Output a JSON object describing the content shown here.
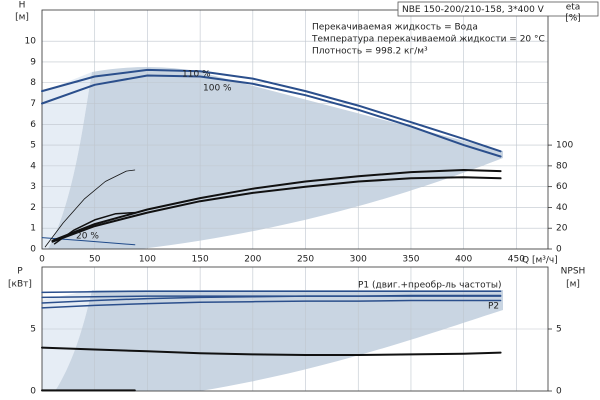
{
  "chart_data": [
    {
      "type": "line",
      "title": "NBE 150-200/210-158, 3*400 V",
      "notes": [
        "Перекачиваемая жидкость = Вода",
        "Температура перекачиваемой жидкости = 20 °C",
        "Плотность = 998.2 кг/м³"
      ],
      "ylabel": "H",
      "yunit": "[м]",
      "y2label": "eta",
      "y2unit": "[%]",
      "xlabel": "Q [м³/ч]",
      "xlim": [
        0,
        480
      ],
      "xticks": [
        0,
        50,
        100,
        150,
        200,
        250,
        300,
        350,
        400,
        450
      ],
      "ylim": [
        0,
        11.5
      ],
      "yticks": [
        0,
        1,
        2,
        3,
        4,
        5,
        6,
        7,
        8,
        9,
        10
      ],
      "y2lim": [
        0,
        230
      ],
      "y2ticks": [
        0,
        20,
        40,
        60,
        80,
        100
      ],
      "grid": true,
      "annotations": [
        "110 %",
        "100 %",
        "20 %"
      ],
      "series": [
        {
          "color": "#2b4f8c",
          "width": 2,
          "x": [
            0,
            50,
            100,
            150,
            200,
            250,
            300,
            350,
            400,
            435
          ],
          "values": [
            7.6,
            8.3,
            8.62,
            8.55,
            8.2,
            7.6,
            6.9,
            6.1,
            5.3,
            4.7
          ]
        },
        {
          "color": "#2b4f8c",
          "width": 2,
          "x": [
            0,
            50,
            100,
            150,
            200,
            250,
            300,
            350,
            400,
            435
          ],
          "values": [
            7.0,
            7.9,
            8.35,
            8.3,
            7.95,
            7.4,
            6.7,
            5.9,
            5.0,
            4.45
          ]
        },
        {
          "color": "#1f4a8a",
          "width": 1,
          "x": [
            0,
            40,
            88
          ],
          "values": [
            0.55,
            0.4,
            0.2
          ]
        },
        {
          "color": "#111111",
          "width": 2,
          "axis": "y2",
          "x": [
            10,
            50,
            100,
            150,
            200,
            250,
            300,
            350,
            400,
            435
          ],
          "values": [
            8,
            24,
            38,
            49,
            58,
            65,
            70,
            74,
            76,
            75
          ]
        },
        {
          "color": "#111111",
          "width": 2,
          "axis": "y2",
          "x": [
            10,
            50,
            100,
            150,
            200,
            250,
            300,
            350,
            400,
            435
          ],
          "values": [
            7,
            22,
            35,
            46,
            54,
            60,
            65,
            68,
            69,
            68
          ]
        },
        {
          "color": "#111111",
          "width": 0.8,
          "axis": "y2",
          "x": [
            3,
            20,
            40,
            60,
            80,
            88
          ],
          "values": [
            2,
            25,
            48,
            65,
            75,
            76
          ]
        },
        {
          "color": "#111111",
          "width": 1.5,
          "axis": "y2",
          "x": [
            12,
            30,
            50,
            70,
            88
          ],
          "values": [
            5,
            18,
            28,
            34,
            35
          ]
        }
      ]
    },
    {
      "type": "line",
      "ylabel": "P",
      "yunit": "[кВт]",
      "y2label": "NPSH",
      "y2unit": "[м]",
      "xlim": [
        0,
        480
      ],
      "xticks": [
        0,
        50,
        100,
        150,
        200,
        250,
        300,
        350,
        400,
        450
      ],
      "ylim": [
        0,
        10
      ],
      "yticks": [
        0,
        5
      ],
      "y2lim": [
        0,
        10
      ],
      "y2ticks": [
        0,
        5
      ],
      "grid": true,
      "annotations": [
        "P1 (двиг.+преобр-ль частоты)",
        "P2"
      ],
      "series": [
        {
          "color": "#2b4f8c",
          "width": 1.5,
          "x": [
            0,
            50,
            100,
            150,
            200,
            250,
            300,
            350,
            400,
            435
          ],
          "values": [
            7.95,
            8.0,
            8.05,
            8.05,
            8.05,
            8.05,
            8.05,
            8.05,
            8.05,
            8.05
          ]
        },
        {
          "color": "#2b4f8c",
          "width": 1.5,
          "x": [
            0,
            50,
            100,
            150,
            200,
            250,
            300,
            350,
            400,
            435
          ],
          "values": [
            7.55,
            7.6,
            7.65,
            7.65,
            7.65,
            7.65,
            7.65,
            7.65,
            7.65,
            7.65
          ]
        },
        {
          "color": "#2b4f8c",
          "width": 1.5,
          "x": [
            0,
            50,
            100,
            150,
            200,
            250,
            300,
            350,
            400,
            435
          ],
          "values": [
            7.1,
            7.3,
            7.45,
            7.55,
            7.6,
            7.65,
            7.65,
            7.7,
            7.7,
            7.7
          ]
        },
        {
          "color": "#2b4f8c",
          "width": 1.5,
          "x": [
            0,
            50,
            100,
            150,
            200,
            250,
            300,
            350,
            400,
            435
          ],
          "values": [
            6.7,
            6.9,
            7.05,
            7.15,
            7.2,
            7.25,
            7.25,
            7.3,
            7.3,
            7.3
          ]
        },
        {
          "color": "#111111",
          "width": 2,
          "axis": "y2",
          "x": [
            0,
            50,
            100,
            150,
            200,
            250,
            300,
            350,
            400,
            435
          ],
          "values": [
            3.5,
            3.35,
            3.2,
            3.05,
            2.95,
            2.9,
            2.9,
            2.95,
            3.0,
            3.1
          ]
        },
        {
          "color": "#111111",
          "width": 2,
          "x": [
            0,
            88
          ],
          "values": [
            0.05,
            0.05
          ]
        }
      ]
    }
  ]
}
